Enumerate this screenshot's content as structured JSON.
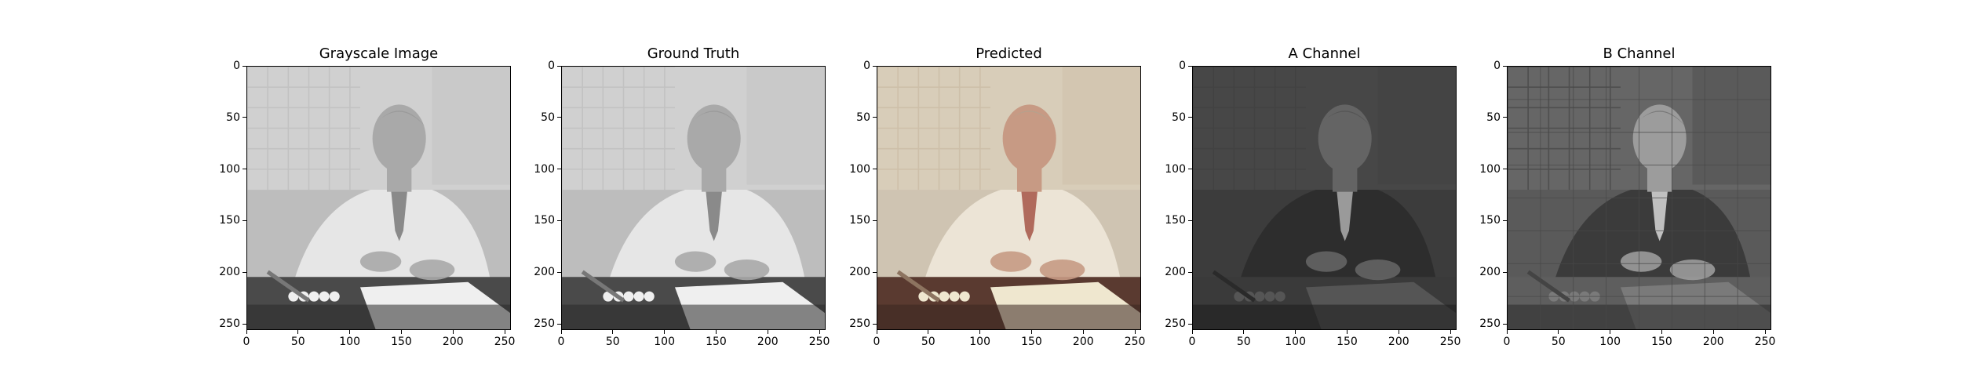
{
  "figure": {
    "panels": [
      {
        "title": "Grayscale Image",
        "image_desc": "grayscale",
        "tone": "gray"
      },
      {
        "title": "Ground Truth",
        "image_desc": "grayscale",
        "tone": "gray"
      },
      {
        "title": "Predicted",
        "image_desc": "colorized",
        "tone": "color"
      },
      {
        "title": "A Channel",
        "image_desc": "dark channel",
        "tone": "achannel"
      },
      {
        "title": "B Channel",
        "image_desc": "blurred channel",
        "tone": "bchannel"
      }
    ]
  },
  "chart_data": [
    {
      "type": "image",
      "title": "Grayscale Image",
      "xticks": [
        0,
        50,
        100,
        150,
        200,
        250
      ],
      "yticks": [
        0,
        50,
        100,
        150,
        200,
        250
      ],
      "xlim": [
        0,
        256
      ],
      "ylim": [
        256,
        0
      ]
    },
    {
      "type": "image",
      "title": "Ground Truth",
      "xticks": [
        0,
        50,
        100,
        150,
        200,
        250
      ],
      "yticks": [
        0,
        50,
        100,
        150,
        200,
        250
      ],
      "xlim": [
        0,
        256
      ],
      "ylim": [
        256,
        0
      ]
    },
    {
      "type": "image",
      "title": "Predicted",
      "xticks": [
        0,
        50,
        100,
        150,
        200,
        250
      ],
      "yticks": [
        0,
        50,
        100,
        150,
        200,
        250
      ],
      "xlim": [
        0,
        256
      ],
      "ylim": [
        256,
        0
      ]
    },
    {
      "type": "image",
      "title": "A Channel",
      "xticks": [
        0,
        50,
        100,
        150,
        200,
        250
      ],
      "yticks": [
        0,
        50,
        100,
        150,
        200,
        250
      ],
      "xlim": [
        0,
        256
      ],
      "ylim": [
        256,
        0
      ]
    },
    {
      "type": "image",
      "title": "B Channel",
      "xticks": [
        0,
        50,
        100,
        150,
        200,
        250
      ],
      "yticks": [
        0,
        50,
        100,
        150,
        200,
        250
      ],
      "xlim": [
        0,
        256
      ],
      "ylim": [
        256,
        0
      ]
    }
  ]
}
